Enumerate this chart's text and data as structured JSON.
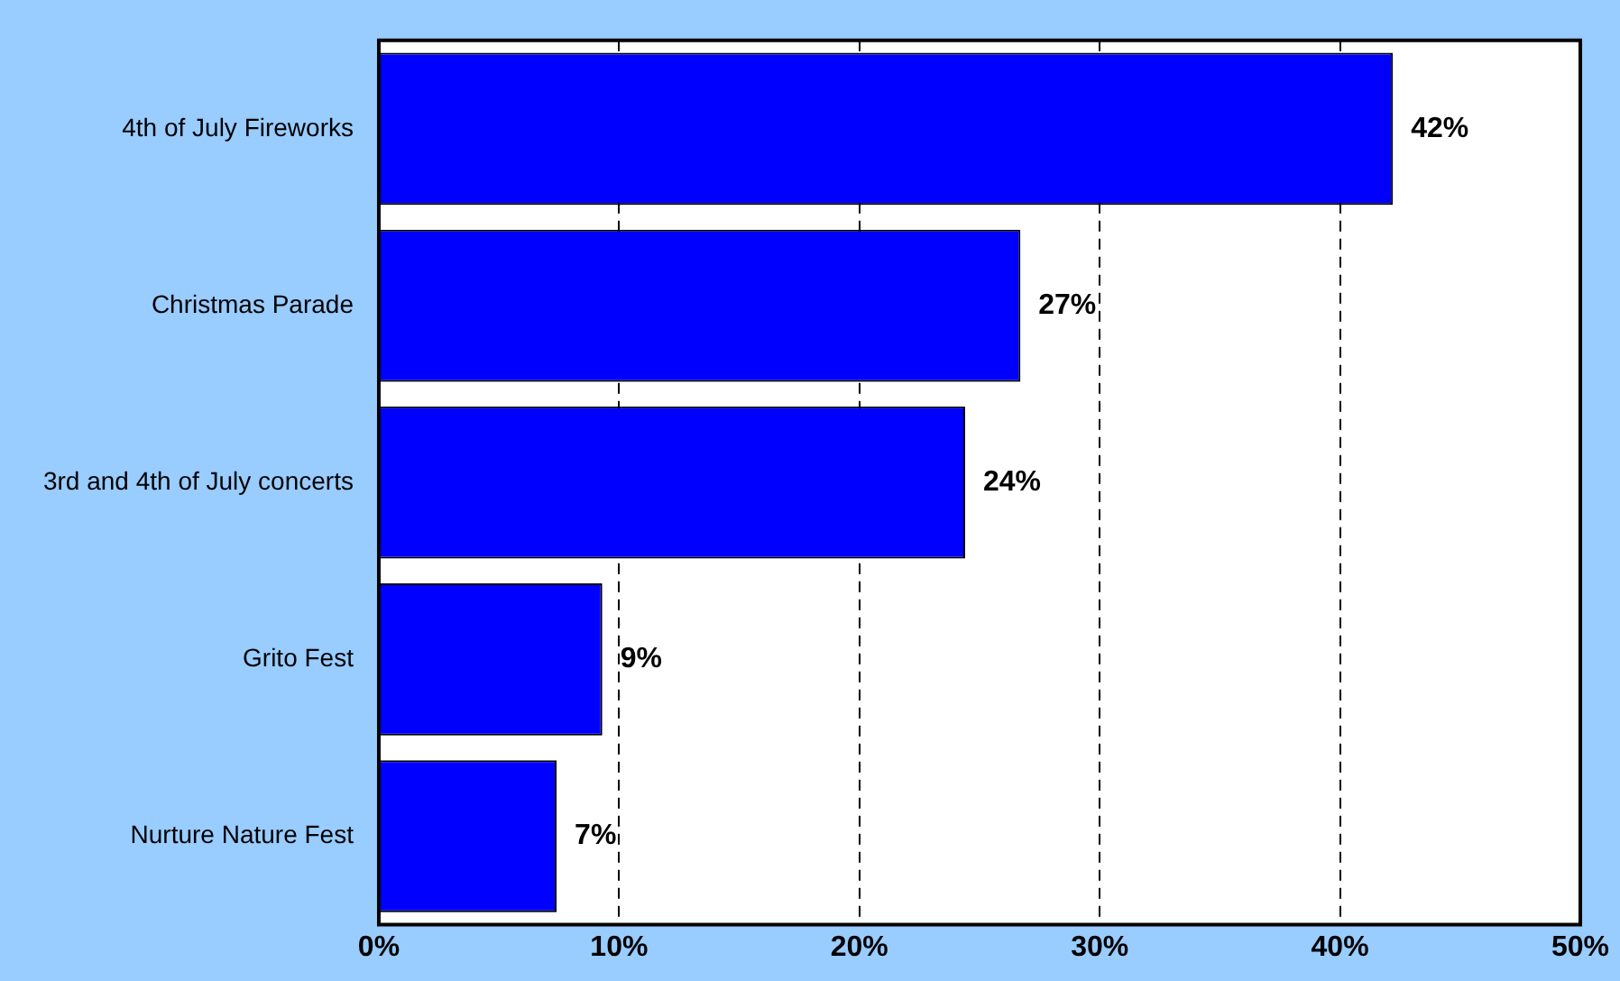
{
  "chart_data": {
    "type": "bar",
    "orientation": "horizontal",
    "categories": [
      "4th of July Fireworks",
      "Christmas Parade",
      "3rd and 4th of July concerts",
      "Grito Fest",
      "Nurture Nature Fest"
    ],
    "values": [
      42.2,
      26.7,
      24.4,
      9.3,
      7.4
    ],
    "value_labels": [
      "42%",
      "27%",
      "24%",
      "9%",
      "7%"
    ],
    "color": "#0000ff",
    "xlim": [
      0,
      50
    ],
    "xticks": [
      {
        "value": 0,
        "label": "0%"
      },
      {
        "value": 10,
        "label": "10%"
      },
      {
        "value": 20,
        "label": "20%"
      },
      {
        "value": 30,
        "label": "30%"
      },
      {
        "value": 40,
        "label": "40%"
      },
      {
        "value": 50,
        "label": "50%"
      }
    ],
    "grid": "x",
    "legend": false
  }
}
